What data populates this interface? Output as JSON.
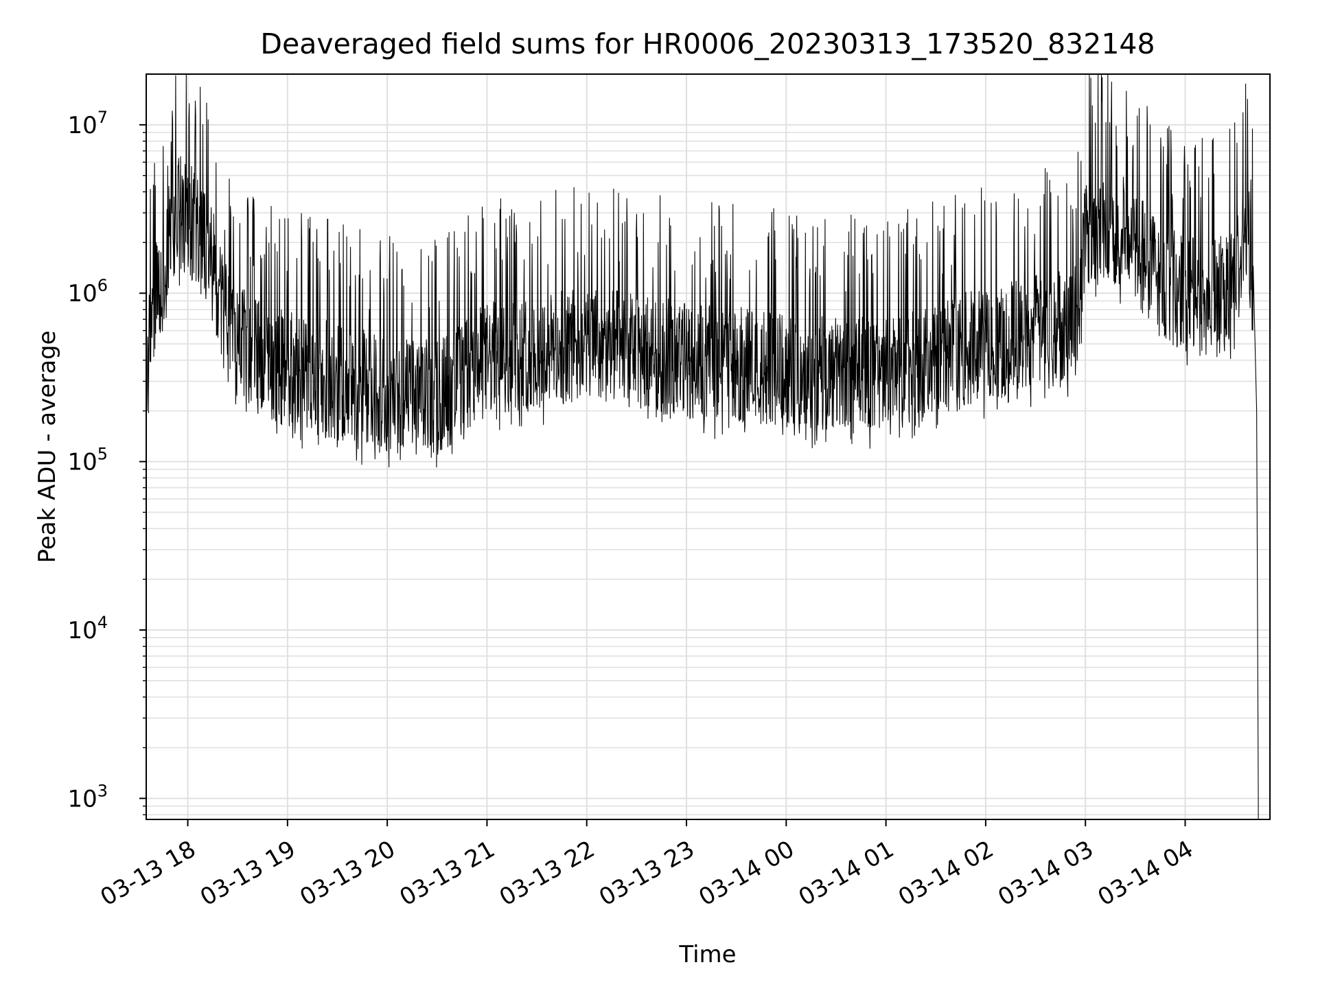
{
  "chart_data": {
    "type": "line",
    "title": "Deaveraged field sums for HR0006_20230313_173520_832148",
    "xlabel": "Time",
    "ylabel": "Peak ADU - average",
    "yscale": "log",
    "ylim": [
      750,
      20000000
    ],
    "xlim": [
      "2023-03-13 17:35",
      "2023-03-14 04:51"
    ],
    "grid": true,
    "line_color": "#000000",
    "grid_color": "#e0e0e0",
    "x_ticks": [
      {
        "value": "2023-03-13 18:00",
        "label": "03-13 18"
      },
      {
        "value": "2023-03-13 19:00",
        "label": "03-13 19"
      },
      {
        "value": "2023-03-13 20:00",
        "label": "03-13 20"
      },
      {
        "value": "2023-03-13 21:00",
        "label": "03-13 21"
      },
      {
        "value": "2023-03-13 22:00",
        "label": "03-13 22"
      },
      {
        "value": "2023-03-13 23:00",
        "label": "03-13 23"
      },
      {
        "value": "2023-03-14 00:00",
        "label": "03-14 00"
      },
      {
        "value": "2023-03-14 01:00",
        "label": "03-14 01"
      },
      {
        "value": "2023-03-14 02:00",
        "label": "03-14 02"
      },
      {
        "value": "2023-03-14 03:00",
        "label": "03-14 03"
      },
      {
        "value": "2023-03-14 04:00",
        "label": "03-14 04"
      }
    ],
    "y_ticks": [
      {
        "value": 1000,
        "base": "10",
        "exp": "3"
      },
      {
        "value": 10000,
        "base": "10",
        "exp": "4"
      },
      {
        "value": 100000,
        "base": "10",
        "exp": "5"
      },
      {
        "value": 1000000,
        "base": "10",
        "exp": "6"
      },
      {
        "value": 10000000,
        "base": "10",
        "exp": "7"
      }
    ],
    "series": [
      {
        "x": [
          "2023-03-13 17:35",
          "2023-03-13 17:37",
          "2023-03-13 17:40",
          "2023-03-13 17:45",
          "2023-03-13 17:50",
          "2023-03-13 17:55",
          "2023-03-13 18:05",
          "2023-03-13 18:10",
          "2023-03-13 18:15",
          "2023-03-13 18:20",
          "2023-03-13 18:30",
          "2023-03-13 18:45",
          "2023-03-13 19:00",
          "2023-03-13 19:30",
          "2023-03-13 20:00",
          "2023-03-13 20:30",
          "2023-03-13 21:00",
          "2023-03-13 21:30",
          "2023-03-13 22:00",
          "2023-03-13 22:30",
          "2023-03-13 23:00",
          "2023-03-13 23:30",
          "2023-03-14 00:00",
          "2023-03-14 00:30",
          "2023-03-14 01:00",
          "2023-03-14 01:30",
          "2023-03-14 02:00",
          "2023-03-14 02:30",
          "2023-03-14 02:55",
          "2023-03-14 03:00",
          "2023-03-14 03:15",
          "2023-03-14 03:30",
          "2023-03-14 03:45",
          "2023-03-14 04:00",
          "2023-03-14 04:15",
          "2023-03-14 04:30",
          "2023-03-14 04:38",
          "2023-03-14 04:41",
          "2023-03-14 04:43",
          "2023-03-14 04:44"
        ],
        "y": [
          250000,
          500000,
          900000,
          1000000,
          2500000,
          3000000,
          2500000,
          2000000,
          1500000,
          800000,
          500000,
          400000,
          350000,
          300000,
          250000,
          240000,
          400000,
          450000,
          500000,
          450000,
          400000,
          380000,
          350000,
          330000,
          320000,
          400000,
          500000,
          600000,
          700000,
          2500000,
          2500000,
          2000000,
          1200000,
          1000000,
          900000,
          1200000,
          2500000,
          1000000,
          200000,
          1000
        ]
      }
    ]
  }
}
